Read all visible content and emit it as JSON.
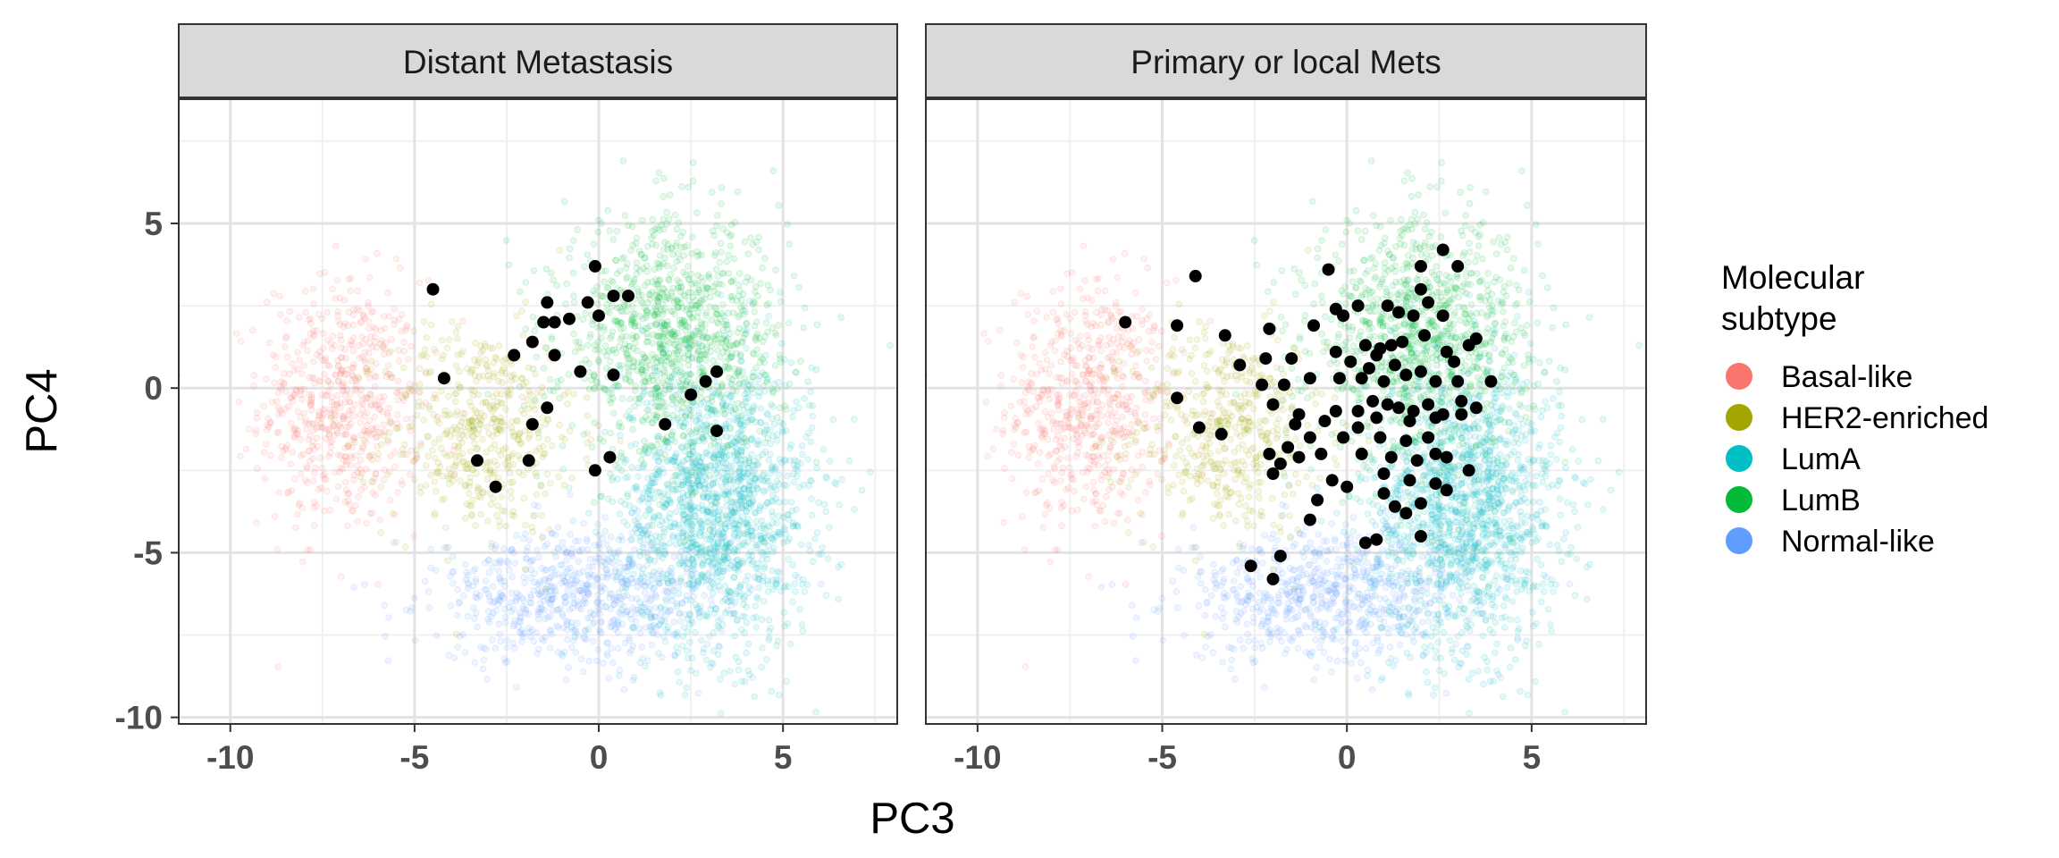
{
  "chart_data": {
    "type": "scatter",
    "xlabel": "PC3",
    "ylabel": "PC4",
    "xlim": [
      -11.4,
      8.1
    ],
    "ylim": [
      -10.2,
      8.8
    ],
    "x_ticks": [
      -10,
      -5,
      0,
      5
    ],
    "y_ticks": [
      5,
      0,
      -5,
      -10
    ],
    "x_tick_labels": [
      "-10",
      "-5",
      "0",
      "5"
    ],
    "y_tick_labels": [
      "5",
      "0",
      "-5",
      "-10"
    ],
    "grid": true,
    "legend_position": "right",
    "legend": {
      "title_lines": [
        "Molecular",
        "subtype"
      ],
      "entries": [
        {
          "label": "Basal-like",
          "color": "#F8766D"
        },
        {
          "label": "HER2-enriched",
          "color": "#A3A500"
        },
        {
          "label": "LumA",
          "color": "#00BFC4"
        },
        {
          "label": "LumB",
          "color": "#00BA38"
        },
        {
          "label": "Normal-like",
          "color": "#619CFF"
        }
      ]
    },
    "background_clusters": [
      {
        "subtype": "Basal-like",
        "cx": -7.0,
        "cy": -0.5,
        "sx": 1.1,
        "sy": 1.9,
        "n": 600
      },
      {
        "subtype": "HER2-enriched",
        "cx": -3.2,
        "cy": -1.3,
        "sx": 1.3,
        "sy": 1.6,
        "n": 500
      },
      {
        "subtype": "LumA",
        "cx": 3.2,
        "cy": -3.5,
        "sx": 1.3,
        "sy": 2.2,
        "n": 1500
      },
      {
        "subtype": "LumB",
        "cx": 2.0,
        "cy": 1.5,
        "sx": 1.5,
        "sy": 1.8,
        "n": 1100
      },
      {
        "subtype": "Normal-like",
        "cx": -0.5,
        "cy": -6.3,
        "sx": 2.0,
        "sy": 1.0,
        "n": 700
      }
    ],
    "panels": [
      {
        "title": "Distant Metastasis",
        "points": [
          [
            -4.5,
            3.0
          ],
          [
            -0.1,
            3.7
          ],
          [
            0.4,
            2.8
          ],
          [
            0.8,
            2.8
          ],
          [
            -1.4,
            2.6
          ],
          [
            -0.3,
            2.6
          ],
          [
            -1.5,
            2.0
          ],
          [
            -1.2,
            2.0
          ],
          [
            -0.8,
            2.1
          ],
          [
            0.0,
            2.2
          ],
          [
            -1.8,
            1.4
          ],
          [
            -2.3,
            1.0
          ],
          [
            -1.2,
            1.0
          ],
          [
            -4.2,
            0.3
          ],
          [
            -0.5,
            0.5
          ],
          [
            0.4,
            0.4
          ],
          [
            3.2,
            0.5
          ],
          [
            2.9,
            0.2
          ],
          [
            2.5,
            -0.2
          ],
          [
            -1.4,
            -0.6
          ],
          [
            -1.8,
            -1.1
          ],
          [
            1.8,
            -1.1
          ],
          [
            3.2,
            -1.3
          ],
          [
            -3.3,
            -2.2
          ],
          [
            -1.9,
            -2.2
          ],
          [
            0.3,
            -2.1
          ],
          [
            -0.1,
            -2.5
          ],
          [
            -2.8,
            -3.0
          ]
        ]
      },
      {
        "title": "Primary or local Mets",
        "points": [
          [
            -4.1,
            3.4
          ],
          [
            -0.5,
            3.6
          ],
          [
            2.6,
            4.2
          ],
          [
            2.0,
            3.7
          ],
          [
            3.0,
            3.7
          ],
          [
            2.0,
            3.0
          ],
          [
            1.1,
            2.5
          ],
          [
            -0.3,
            2.4
          ],
          [
            0.3,
            2.5
          ],
          [
            2.2,
            2.6
          ],
          [
            1.4,
            2.3
          ],
          [
            1.8,
            2.2
          ],
          [
            2.6,
            2.2
          ],
          [
            -6.0,
            2.0
          ],
          [
            -4.6,
            1.9
          ],
          [
            -3.3,
            1.6
          ],
          [
            -2.1,
            1.8
          ],
          [
            -0.9,
            1.9
          ],
          [
            -0.1,
            2.2
          ],
          [
            0.5,
            1.3
          ],
          [
            0.9,
            1.2
          ],
          [
            1.2,
            1.3
          ],
          [
            1.5,
            1.4
          ],
          [
            2.1,
            1.6
          ],
          [
            3.3,
            1.3
          ],
          [
            3.5,
            1.5
          ],
          [
            -0.3,
            1.1
          ],
          [
            0.8,
            1.0
          ],
          [
            2.7,
            1.1
          ],
          [
            -2.9,
            0.7
          ],
          [
            -2.2,
            0.9
          ],
          [
            -1.5,
            0.9
          ],
          [
            0.1,
            0.8
          ],
          [
            0.6,
            0.6
          ],
          [
            1.3,
            0.7
          ],
          [
            2.0,
            0.5
          ],
          [
            2.9,
            0.8
          ],
          [
            -2.3,
            0.1
          ],
          [
            -1.7,
            0.1
          ],
          [
            -1.0,
            0.3
          ],
          [
            -0.2,
            0.3
          ],
          [
            0.4,
            0.3
          ],
          [
            1.0,
            0.2
          ],
          [
            1.6,
            0.4
          ],
          [
            2.4,
            0.2
          ],
          [
            3.0,
            0.2
          ],
          [
            3.9,
            0.2
          ],
          [
            -4.6,
            -0.3
          ],
          [
            -2.0,
            -0.5
          ],
          [
            -1.3,
            -0.8
          ],
          [
            -0.3,
            -0.7
          ],
          [
            0.3,
            -0.7
          ],
          [
            0.7,
            -0.4
          ],
          [
            1.1,
            -0.5
          ],
          [
            1.4,
            -0.6
          ],
          [
            1.8,
            -0.7
          ],
          [
            2.2,
            -0.5
          ],
          [
            2.6,
            -0.8
          ],
          [
            3.1,
            -0.4
          ],
          [
            3.5,
            -0.6
          ],
          [
            -4.0,
            -1.2
          ],
          [
            -3.4,
            -1.4
          ],
          [
            -1.4,
            -1.1
          ],
          [
            -0.6,
            -1.0
          ],
          [
            0.3,
            -1.2
          ],
          [
            0.8,
            -0.9
          ],
          [
            1.7,
            -1.0
          ],
          [
            2.4,
            -0.9
          ],
          [
            3.1,
            -0.8
          ],
          [
            -1.6,
            -1.8
          ],
          [
            -1.0,
            -1.5
          ],
          [
            -0.1,
            -1.5
          ],
          [
            0.9,
            -1.5
          ],
          [
            1.6,
            -1.6
          ],
          [
            2.2,
            -1.5
          ],
          [
            -2.1,
            -2.0
          ],
          [
            -1.8,
            -2.3
          ],
          [
            -1.3,
            -2.1
          ],
          [
            -0.7,
            -2.0
          ],
          [
            0.4,
            -2.0
          ],
          [
            1.2,
            -2.1
          ],
          [
            1.9,
            -2.2
          ],
          [
            2.4,
            -2.0
          ],
          [
            2.7,
            -2.1
          ],
          [
            -2.0,
            -2.6
          ],
          [
            -0.4,
            -2.8
          ],
          [
            1.0,
            -2.6
          ],
          [
            1.7,
            -2.8
          ],
          [
            3.3,
            -2.5
          ],
          [
            0.0,
            -3.0
          ],
          [
            1.0,
            -3.2
          ],
          [
            2.4,
            -2.9
          ],
          [
            2.7,
            -3.1
          ],
          [
            -0.8,
            -3.4
          ],
          [
            1.3,
            -3.6
          ],
          [
            1.6,
            -3.8
          ],
          [
            2.0,
            -3.5
          ],
          [
            -1.0,
            -4.0
          ],
          [
            2.0,
            -4.5
          ],
          [
            0.8,
            -4.6
          ],
          [
            0.5,
            -4.7
          ],
          [
            -1.8,
            -5.1
          ],
          [
            -2.6,
            -5.4
          ],
          [
            -2.0,
            -5.8
          ]
        ]
      }
    ]
  }
}
